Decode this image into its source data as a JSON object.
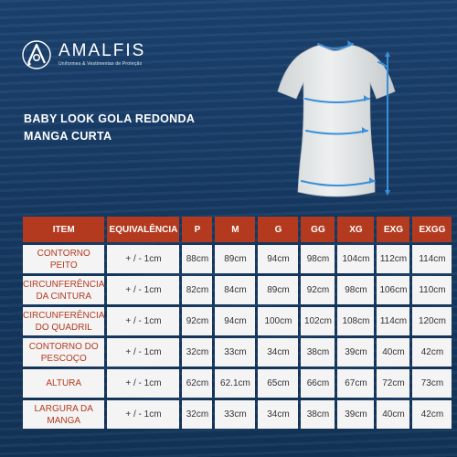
{
  "brand": {
    "name": "AMALFIS",
    "tagline": "Uniformes & Vestimentas de Proteção"
  },
  "product": {
    "title_line1": "BABY LOOK GOLA REDONDA",
    "title_line2": "MANGA CURTA"
  },
  "colors": {
    "background": "#173a64",
    "header": "#b43a1f",
    "row_label": "#b43a1f",
    "cell_bg": "#f4f4f4",
    "measure_arrow": "#3a8fd8"
  },
  "icons": [
    "amalfis-logo-icon",
    "tshirt-illustration"
  ],
  "table": {
    "headers": [
      "ITEM",
      "EQUIVALÊNCIA",
      "P",
      "M",
      "G",
      "GG",
      "XG",
      "EXG",
      "EXGG"
    ],
    "rows": [
      {
        "item_line1": "CONTORNO",
        "item_line2": "PEITO",
        "equivalence": "+ / -  1cm",
        "values": [
          "88cm",
          "89cm",
          "94cm",
          "98cm",
          "104cm",
          "112cm",
          "114cm"
        ]
      },
      {
        "item_line1": "CIRCUNFERÊNCIA",
        "item_line2": "DA CINTURA",
        "equivalence": "+ / -  1cm",
        "values": [
          "82cm",
          "84cm",
          "89cm",
          "92cm",
          "98cm",
          "106cm",
          "110cm"
        ]
      },
      {
        "item_line1": "CIRCUNFERÊNCIA",
        "item_line2": "DO QUADRIL",
        "equivalence": "+ / -  1cm",
        "values": [
          "92cm",
          "94cm",
          "100cm",
          "102cm",
          "108cm",
          "114cm",
          "120cm"
        ]
      },
      {
        "item_line1": "CONTORNO DO",
        "item_line2": "PESCOÇO",
        "equivalence": "+ / -  1cm",
        "values": [
          "32cm",
          "33cm",
          "34cm",
          "38cm",
          "39cm",
          "40cm",
          "42cm"
        ]
      },
      {
        "item_line1": "ALTURA",
        "item_line2": "",
        "equivalence": "+ / -  1cm",
        "values": [
          "62cm",
          "62.1cm",
          "65cm",
          "66cm",
          "67cm",
          "72cm",
          "73cm"
        ]
      },
      {
        "item_line1": "LARGURA DA",
        "item_line2": "MANGA",
        "equivalence": "+ / -  1cm",
        "values": [
          "32cm",
          "33cm",
          "34cm",
          "38cm",
          "39cm",
          "40cm",
          "42cm"
        ]
      }
    ]
  }
}
